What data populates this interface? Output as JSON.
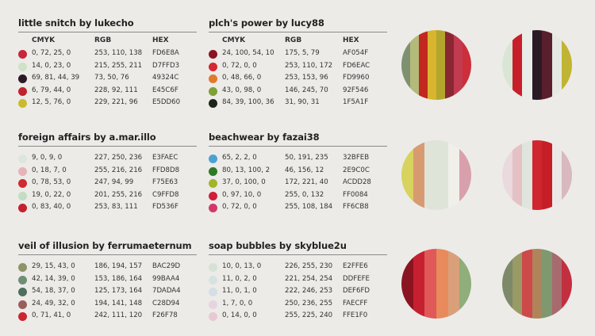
{
  "headers": {
    "cmyk": "CMYK",
    "rgb": "RGB",
    "hex": "HEX"
  },
  "palettes": [
    {
      "title": "little snitch by lukecho",
      "colors": [
        {
          "cmyk": "0, 72, 25, 0",
          "rgb": "253, 110, 138",
          "hex": "FD6E8A",
          "color": "#c8263c"
        },
        {
          "cmyk": "14, 0, 23, 0",
          "rgb": "215, 255, 211",
          "hex": "D7FFD3",
          "color": "#cfe2c6"
        },
        {
          "cmyk": "69, 81, 44, 39",
          "rgb": "73, 50, 76",
          "hex": "49324C",
          "color": "#2b1a26"
        },
        {
          "cmyk": "6, 79, 44, 0",
          "rgb": "228, 92, 111",
          "hex": "E45C6F",
          "color": "#c0232c"
        },
        {
          "cmyk": "12, 5, 76, 0",
          "rgb": "229, 221, 96",
          "hex": "E5DD60",
          "color": "#cbbb2c"
        }
      ]
    },
    {
      "title": "plch's power by lucy88",
      "colors": [
        {
          "cmyk": "24, 100, 54, 10",
          "rgb": "175, 5, 79",
          "hex": "AF054F",
          "color": "#8a1422"
        },
        {
          "cmyk": "0, 72, 0, 0",
          "rgb": "253, 110, 172",
          "hex": "FD6EAC",
          "color": "#d22a30"
        },
        {
          "cmyk": "0, 48, 66, 0",
          "rgb": "253, 153, 96",
          "hex": "FD9960",
          "color": "#e07a2c"
        },
        {
          "cmyk": "43, 0, 98, 0",
          "rgb": "146, 245, 70",
          "hex": "92F546",
          "color": "#7ea034"
        },
        {
          "cmyk": "84, 39, 100, 36",
          "rgb": "31, 90, 31",
          "hex": "1F5A1F",
          "color": "#1b2518"
        }
      ]
    },
    {
      "title": "foreign affairs by a.mar.illo",
      "colors": [
        {
          "cmyk": "9, 0, 9, 0",
          "rgb": "227, 250, 236",
          "hex": "E3FAEC",
          "color": "#dde6dd"
        },
        {
          "cmyk": "0, 18, 7, 0",
          "rgb": "255, 216, 216",
          "hex": "FFD8D8",
          "color": "#e6b4b8"
        },
        {
          "cmyk": "0, 78, 53, 0",
          "rgb": "247, 94, 99",
          "hex": "F75E63",
          "color": "#cf2a2e"
        },
        {
          "cmyk": "19, 0, 22, 0",
          "rgb": "201, 255, 216",
          "hex": "C9FFD8",
          "color": "#c3dcc3"
        },
        {
          "cmyk": "0, 83, 40, 0",
          "rgb": "253, 83, 111",
          "hex": "FD536F",
          "color": "#c4202e"
        }
      ]
    },
    {
      "title": "beachwear by fazai38",
      "colors": [
        {
          "cmyk": "65, 2, 2, 0",
          "rgb": "50, 191, 235",
          "hex": "32BFEB",
          "color": "#4aa3d0"
        },
        {
          "cmyk": "80, 13, 100, 2",
          "rgb": "46, 156, 12",
          "hex": "2E9C0C",
          "color": "#2f7a26"
        },
        {
          "cmyk": "37, 0, 100, 0",
          "rgb": "172, 221, 40",
          "hex": "ACDD28",
          "color": "#a3b42a"
        },
        {
          "cmyk": "0, 97, 10, 0",
          "rgb": "255, 0, 132",
          "hex": "FF0084",
          "color": "#d01e3a"
        },
        {
          "cmyk": "0, 72, 0, 0",
          "rgb": "255, 108, 184",
          "hex": "FF6CB8",
          "color": "#d2386a"
        }
      ]
    },
    {
      "title": "veil of illusion by ferrumaeternum",
      "colors": [
        {
          "cmyk": "29, 15, 43, 0",
          "rgb": "186, 194, 157",
          "hex": "BAC29D",
          "color": "#8c9468"
        },
        {
          "cmyk": "42, 14, 39, 0",
          "rgb": "153, 186, 164",
          "hex": "99BAA4",
          "color": "#6f8f74"
        },
        {
          "cmyk": "54, 18, 37, 0",
          "rgb": "125, 173, 164",
          "hex": "7DADA4",
          "color": "#4e6e5e"
        },
        {
          "cmyk": "24, 49, 32, 0",
          "rgb": "194, 141, 148",
          "hex": "C28D94",
          "color": "#9a5e5a"
        },
        {
          "cmyk": "0, 71, 41, 0",
          "rgb": "242, 111, 120",
          "hex": "F26F78",
          "color": "#cc2430"
        }
      ]
    },
    {
      "title": "soap bubbles by skyblue2u",
      "colors": [
        {
          "cmyk": "10, 0, 13, 0",
          "rgb": "226, 255, 230",
          "hex": "E2FFE6",
          "color": "#d6e2d4"
        },
        {
          "cmyk": "11, 0, 2, 0",
          "rgb": "221, 254, 254",
          "hex": "DDFEFE",
          "color": "#d6e2e2"
        },
        {
          "cmyk": "11, 0, 1, 0",
          "rgb": "222, 246, 253",
          "hex": "DEF6FD",
          "color": "#d4dfe4"
        },
        {
          "cmyk": "1, 7, 0, 0",
          "rgb": "250, 236, 255",
          "hex": "FAECFF",
          "color": "#e6d4e2"
        },
        {
          "cmyk": "0, 14, 0, 0",
          "rgb": "255, 225, 240",
          "hex": "FFE1F0",
          "color": "#e8c8d4"
        }
      ]
    }
  ],
  "swatches": [
    [
      "#7f9070",
      "#b3ba7a",
      "#c2281f",
      "#d8b52e",
      "#b2a72c",
      "#8a2733",
      "#c23b50",
      "#cc2e3a"
    ],
    [
      "#d9e6d6",
      "#c8202a",
      "#e9ede8",
      "#2a1a25",
      "#5a1f2c",
      "#e6e9e2",
      "#c2b433"
    ],
    [
      "#d8d25e",
      "#d89a70",
      "#dfe4d8",
      "#dfe4d8",
      "#f0efe9",
      "#d8a0ab"
    ],
    [
      "#ead9dd",
      "#e5c1c5",
      "#dfe5dc",
      "#cf2630",
      "#c61e26",
      "#ebe9e6",
      "#d8b9be"
    ],
    [
      "#8a1420",
      "#c62030",
      "#e05858",
      "#e88a5c",
      "#d9a07a",
      "#8fae7a"
    ],
    [
      "#7c8a6a",
      "#9a9a66",
      "#cc4a4a",
      "#b0845a",
      "#7f9870",
      "#a86a6e",
      "#c23040"
    ]
  ]
}
